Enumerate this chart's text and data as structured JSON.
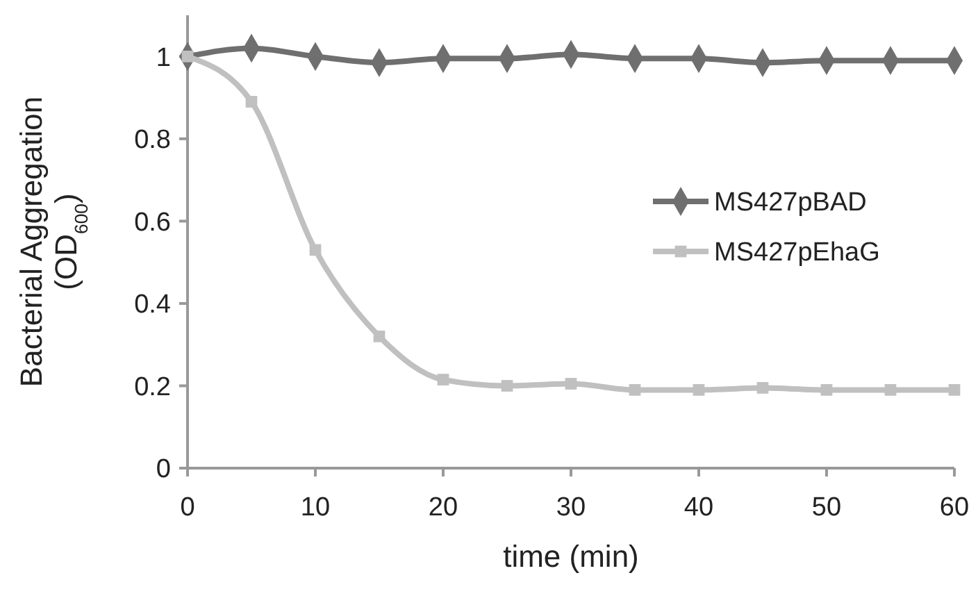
{
  "chart_data": {
    "type": "line",
    "xlabel": "time (min)",
    "ylabel": "Bacterial Aggregation\n(OD$_{600}$)",
    "x": [
      0,
      5,
      10,
      15,
      20,
      25,
      30,
      35,
      40,
      45,
      50,
      55,
      60
    ],
    "xlim": [
      0,
      60
    ],
    "xticks": [
      0,
      10,
      20,
      30,
      40,
      50,
      60
    ],
    "ylim": [
      0,
      1.1
    ],
    "yticks": [
      0,
      0.2,
      0.4,
      0.6,
      0.8,
      {
        "value": 1,
        "label": "1"
      }
    ],
    "grid": false,
    "legend": "right",
    "line_style": "solid",
    "series": [
      {
        "name": "MS427pBAD",
        "color": "#6f6f6f",
        "marker": "diamond",
        "values": [
          1,
          1.02,
          1.0,
          0.985,
          0.995,
          0.995,
          1.005,
          0.995,
          0.995,
          0.985,
          0.99,
          0.99,
          0.99
        ]
      },
      {
        "name": "MS427pEhaG",
        "color": "#c0c0c0",
        "marker": "square",
        "values": [
          1,
          0.89,
          0.53,
          0.32,
          0.215,
          0.2,
          0.205,
          0.19,
          0.19,
          0.195,
          0.19,
          0.19,
          0.19
        ]
      }
    ]
  }
}
